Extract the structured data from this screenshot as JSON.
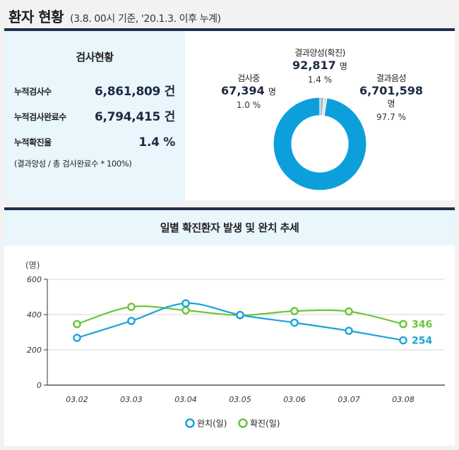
{
  "header": {
    "title": "환자 현황",
    "subtitle": "(3.8. 00시 기준, '20.1.3. 이후 누계)"
  },
  "stats": {
    "title": "검사현황",
    "rows": [
      {
        "label": "누적검사수",
        "value": "6,861,809 건"
      },
      {
        "label": "누적검사완료수",
        "value": "6,794,415 건"
      },
      {
        "label": "누적확진율",
        "value": "1.4 %"
      }
    ],
    "note": "(결과양성 / 총 검사완료수 * 100%)"
  },
  "donut": {
    "colors": {
      "negative": "#0d9fdc",
      "positive": "#a9bccd",
      "testing": "#d9dde2"
    },
    "positive": {
      "name": "결과양성(확진)",
      "value": "92,817",
      "unit": "명",
      "pct": "1.4 %",
      "share": 1.4
    },
    "testing": {
      "name": "검사중",
      "value": "67,394",
      "unit": "명",
      "pct": "1.0 %",
      "share": 1.0
    },
    "negative": {
      "name": "결과음성",
      "value": "6,701,598",
      "unit": "명",
      "pct": "97.7 %",
      "share": 97.7
    }
  },
  "trend": {
    "title": "일별 확진환자 발생 및 완치 추세"
  },
  "chart_data": {
    "type": "line",
    "title": "일별 확진환자 발생 및 완치 추세",
    "ylabel": "(명)",
    "ylim": [
      0,
      600
    ],
    "yticks": [
      "0",
      "200",
      "400",
      "600"
    ],
    "categories": [
      "03.02",
      "03.03",
      "03.04",
      "03.05",
      "03.06",
      "03.07",
      "03.08"
    ],
    "series": [
      {
        "name": "완치(일)",
        "color": "#1ba4d8",
        "values": [
          268,
          364,
          464,
          398,
          354,
          308,
          254
        ],
        "end_label": "254"
      },
      {
        "name": "확진(일)",
        "color": "#6cc43a",
        "values": [
          346,
          444,
          424,
          396,
          420,
          418,
          346
        ],
        "end_label": "346"
      }
    ],
    "grid": true,
    "legend": "bottom"
  }
}
